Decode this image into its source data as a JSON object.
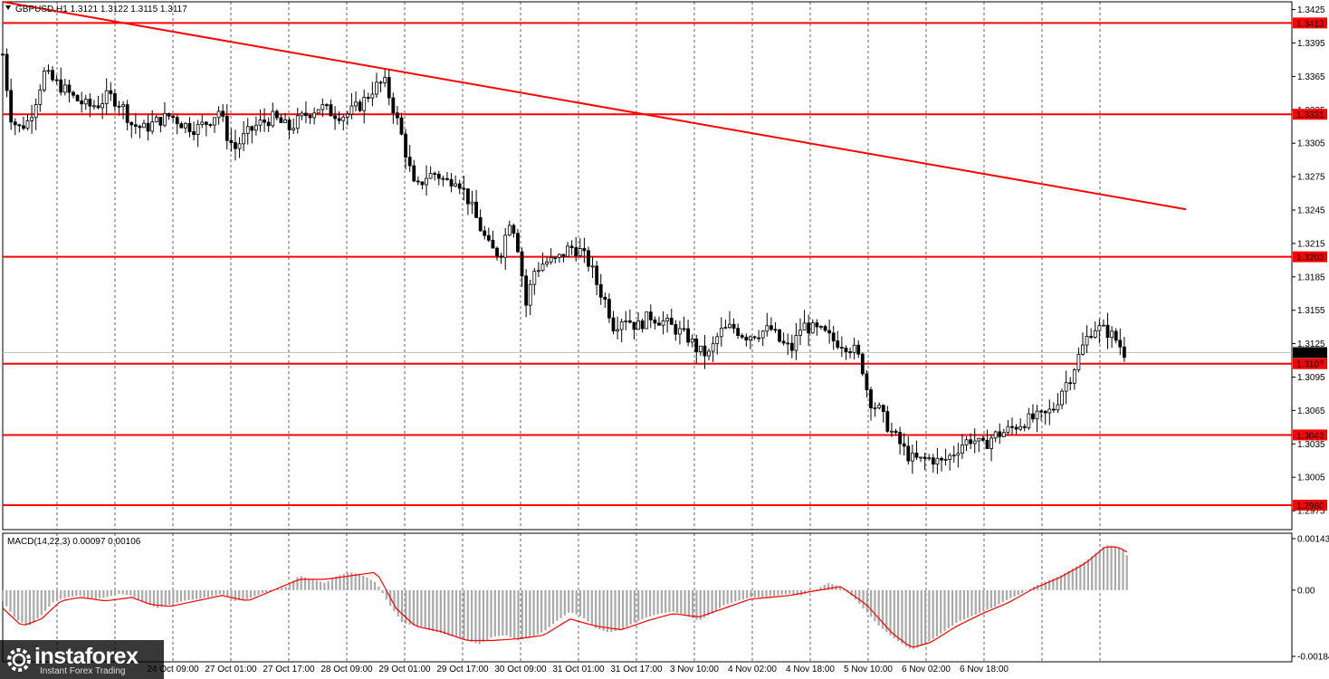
{
  "chart_data": [
    {
      "type": "candlestick",
      "symbol": "GBPUSD",
      "timeframe": "H1",
      "header_label": "GBPUSD,H1",
      "ohlc_label": "1.3121 1.3122 1.3115 1.3117",
      "current_price": "1.3117",
      "ylim": [
        1.2958,
        1.3432
      ],
      "y_ticks": [
        "1.3425",
        "1.3395",
        "1.3365",
        "1.3335",
        "1.3305",
        "1.3275",
        "1.3245",
        "1.3215",
        "1.3185",
        "1.3155",
        "1.3125",
        "1.3095",
        "1.3065",
        "1.3035",
        "1.3005",
        "1.2975"
      ],
      "x_ticks": [
        "24 Oct 09:00",
        "27 Oct 01:00",
        "27 Oct 17:00",
        "28 Oct 09:00",
        "29 Oct 01:00",
        "29 Oct 17:00",
        "30 Oct 09:00",
        "31 Oct 01:00",
        "31 Oct 17:00",
        "3 Nov 10:00",
        "4 Nov 02:00",
        "4 Nov 18:00",
        "5 Nov 10:00",
        "6 Nov 02:00",
        "6 Nov 18:00"
      ],
      "levels": [
        {
          "label": "1.3413",
          "value": 1.3413
        },
        {
          "label": "1.3331",
          "value": 1.3331
        },
        {
          "label": "1.3203",
          "value": 1.3203
        },
        {
          "label": "1.3107",
          "value": 1.3107
        },
        {
          "label": "1.3043",
          "value": 1.3043
        },
        {
          "label": "1.2980",
          "value": 1.298
        }
      ],
      "trendline": {
        "start": [
          0,
          1.3432
        ],
        "end": [
          1.0,
          1.3229
        ]
      },
      "price_path": [
        [
          0.0,
          1.3385
        ],
        [
          0.006,
          1.333
        ],
        [
          0.012,
          1.3318
        ],
        [
          0.02,
          1.3325
        ],
        [
          0.026,
          1.3345
        ],
        [
          0.032,
          1.3368
        ],
        [
          0.038,
          1.3362
        ],
        [
          0.046,
          1.3355
        ],
        [
          0.056,
          1.3345
        ],
        [
          0.066,
          1.3338
        ],
        [
          0.074,
          1.334
        ],
        [
          0.082,
          1.3348
        ],
        [
          0.092,
          1.334
        ],
        [
          0.1,
          1.3322
        ],
        [
          0.11,
          1.3318
        ],
        [
          0.12,
          1.3325
        ],
        [
          0.13,
          1.333
        ],
        [
          0.14,
          1.3322
        ],
        [
          0.15,
          1.3318
        ],
        [
          0.16,
          1.3325
        ],
        [
          0.168,
          1.3335
        ],
        [
          0.174,
          1.3312
        ],
        [
          0.18,
          1.33
        ],
        [
          0.188,
          1.3312
        ],
        [
          0.198,
          1.3322
        ],
        [
          0.21,
          1.3328
        ],
        [
          0.222,
          1.3318
        ],
        [
          0.234,
          1.333
        ],
        [
          0.246,
          1.3338
        ],
        [
          0.256,
          1.3332
        ],
        [
          0.266,
          1.333
        ],
        [
          0.278,
          1.334
        ],
        [
          0.288,
          1.3355
        ],
        [
          0.296,
          1.336
        ],
        [
          0.302,
          1.334
        ],
        [
          0.308,
          1.3318
        ],
        [
          0.314,
          1.329
        ],
        [
          0.32,
          1.3262
        ],
        [
          0.328,
          1.3275
        ],
        [
          0.336,
          1.3278
        ],
        [
          0.344,
          1.327
        ],
        [
          0.352,
          1.3275
        ],
        [
          0.362,
          1.3252
        ],
        [
          0.37,
          1.323
        ],
        [
          0.378,
          1.321
        ],
        [
          0.386,
          1.3205
        ],
        [
          0.394,
          1.324
        ],
        [
          0.4,
          1.321
        ],
        [
          0.406,
          1.316
        ],
        [
          0.412,
          1.319
        ],
        [
          0.42,
          1.3198
        ],
        [
          0.43,
          1.32
        ],
        [
          0.44,
          1.3212
        ],
        [
          0.448,
          1.3208
        ],
        [
          0.456,
          1.3195
        ],
        [
          0.462,
          1.3175
        ],
        [
          0.468,
          1.3162
        ],
        [
          0.474,
          1.314
        ],
        [
          0.482,
          1.315
        ],
        [
          0.492,
          1.314
        ],
        [
          0.502,
          1.315
        ],
        [
          0.512,
          1.3145
        ],
        [
          0.522,
          1.3138
        ],
        [
          0.532,
          1.313
        ],
        [
          0.54,
          1.3118
        ],
        [
          0.548,
          1.3115
        ],
        [
          0.556,
          1.3135
        ],
        [
          0.566,
          1.314
        ],
        [
          0.576,
          1.3132
        ],
        [
          0.586,
          1.3135
        ],
        [
          0.596,
          1.3138
        ],
        [
          0.604,
          1.3125
        ],
        [
          0.612,
          1.312
        ],
        [
          0.62,
          1.3142
        ],
        [
          0.628,
          1.3138
        ],
        [
          0.636,
          1.3135
        ],
        [
          0.644,
          1.3128
        ],
        [
          0.652,
          1.3125
        ],
        [
          0.66,
          1.312
        ],
        [
          0.666,
          1.3108
        ],
        [
          0.672,
          1.3075
        ],
        [
          0.68,
          1.3065
        ],
        [
          0.688,
          1.3048
        ],
        [
          0.696,
          1.3035
        ],
        [
          0.704,
          1.3022
        ],
        [
          0.712,
          1.302
        ],
        [
          0.72,
          1.3022
        ],
        [
          0.728,
          1.3018
        ],
        [
          0.736,
          1.3025
        ],
        [
          0.744,
          1.3035
        ],
        [
          0.752,
          1.304
        ],
        [
          0.76,
          1.3032
        ],
        [
          0.768,
          1.3042
        ],
        [
          0.776,
          1.3045
        ],
        [
          0.784,
          1.305
        ],
        [
          0.792,
          1.3055
        ],
        [
          0.8,
          1.3058
        ],
        [
          0.808,
          1.306
        ],
        [
          0.816,
          1.3068
        ],
        [
          0.822,
          1.3085
        ],
        [
          0.828,
          1.3095
        ],
        [
          0.834,
          1.3112
        ],
        [
          0.84,
          1.3128
        ],
        [
          0.846,
          1.314
        ],
        [
          0.852,
          1.3138
        ],
        [
          0.858,
          1.3135
        ],
        [
          0.864,
          1.3128
        ],
        [
          0.87,
          1.3117
        ]
      ]
    },
    {
      "type": "bar",
      "indicator": "MACD",
      "header_label": "MACD(14,22,3) 0.00097 0.00106",
      "ylim": [
        -0.00184,
        0.00143
      ],
      "y_ticks": [
        "0.00143",
        "0.00",
        "-0.00184"
      ],
      "histogram_path": [
        [
          0.0,
          -0.0003
        ],
        [
          0.01,
          -0.0008
        ],
        [
          0.02,
          -0.001
        ],
        [
          0.03,
          -0.0007
        ],
        [
          0.04,
          -0.0003
        ],
        [
          0.05,
          -0.0002
        ],
        [
          0.06,
          -0.00015
        ],
        [
          0.07,
          -0.00025
        ],
        [
          0.08,
          -0.0002
        ],
        [
          0.09,
          -0.0001
        ],
        [
          0.1,
          -0.00015
        ],
        [
          0.11,
          -0.00035
        ],
        [
          0.12,
          -0.0005
        ],
        [
          0.13,
          -0.0004
        ],
        [
          0.14,
          -0.0003
        ],
        [
          0.15,
          -0.00025
        ],
        [
          0.16,
          -0.0002
        ],
        [
          0.17,
          -0.0001
        ],
        [
          0.18,
          -0.0003
        ],
        [
          0.19,
          -0.00025
        ],
        [
          0.2,
          -0.0001
        ],
        [
          0.21,
          0.0
        ],
        [
          0.22,
          0.0001
        ],
        [
          0.23,
          0.0004
        ],
        [
          0.24,
          0.0003
        ],
        [
          0.25,
          0.0002
        ],
        [
          0.26,
          0.0004
        ],
        [
          0.27,
          0.0005
        ],
        [
          0.28,
          0.0004
        ],
        [
          0.29,
          0.0002
        ],
        [
          0.3,
          -0.0004
        ],
        [
          0.31,
          -0.0009
        ],
        [
          0.32,
          -0.001
        ],
        [
          0.33,
          -0.0011
        ],
        [
          0.34,
          -0.0012
        ],
        [
          0.35,
          -0.0013
        ],
        [
          0.36,
          -0.0014
        ],
        [
          0.37,
          -0.0015
        ],
        [
          0.38,
          -0.0013
        ],
        [
          0.39,
          -0.00125
        ],
        [
          0.4,
          -0.0014
        ],
        [
          0.41,
          -0.0013
        ],
        [
          0.42,
          -0.00115
        ],
        [
          0.43,
          -0.00085
        ],
        [
          0.44,
          -0.0006
        ],
        [
          0.45,
          -0.00075
        ],
        [
          0.46,
          -0.00105
        ],
        [
          0.47,
          -0.00118
        ],
        [
          0.48,
          -0.0011
        ],
        [
          0.49,
          -0.0009
        ],
        [
          0.5,
          -0.00075
        ],
        [
          0.51,
          -0.00065
        ],
        [
          0.52,
          -0.0006
        ],
        [
          0.53,
          -0.0007
        ],
        [
          0.54,
          -0.00085
        ],
        [
          0.55,
          -0.00065
        ],
        [
          0.56,
          -0.0004
        ],
        [
          0.57,
          -0.0003
        ],
        [
          0.58,
          -0.0002
        ],
        [
          0.59,
          -0.0002
        ],
        [
          0.6,
          -0.00015
        ],
        [
          0.61,
          -0.0001
        ],
        [
          0.62,
          -0.00015
        ],
        [
          0.63,
          0.0
        ],
        [
          0.64,
          0.0002
        ],
        [
          0.65,
          0.0001
        ],
        [
          0.66,
          -0.0002
        ],
        [
          0.67,
          -0.0006
        ],
        [
          0.68,
          -0.001
        ],
        [
          0.69,
          -0.0013
        ],
        [
          0.7,
          -0.00155
        ],
        [
          0.705,
          -0.00165
        ],
        [
          0.71,
          -0.0016
        ],
        [
          0.72,
          -0.0014
        ],
        [
          0.73,
          -0.00115
        ],
        [
          0.74,
          -0.0009
        ],
        [
          0.75,
          -0.00075
        ],
        [
          0.76,
          -0.0006
        ],
        [
          0.77,
          -0.00045
        ],
        [
          0.78,
          -0.00025
        ],
        [
          0.79,
          -0.0001
        ],
        [
          0.8,
          0.0001
        ],
        [
          0.81,
          0.00025
        ],
        [
          0.82,
          0.0004
        ],
        [
          0.83,
          0.0006
        ],
        [
          0.84,
          0.0008
        ],
        [
          0.85,
          0.0011
        ],
        [
          0.856,
          0.00125
        ],
        [
          0.862,
          0.00123
        ],
        [
          0.868,
          0.00115
        ],
        [
          0.872,
          0.00097
        ]
      ],
      "signal_path": [
        [
          0.0,
          -0.0005
        ],
        [
          0.015,
          -0.001
        ],
        [
          0.03,
          -0.0008
        ],
        [
          0.045,
          -0.0003
        ],
        [
          0.06,
          -0.0002
        ],
        [
          0.08,
          -0.0003
        ],
        [
          0.1,
          -0.0002
        ],
        [
          0.115,
          -0.0004
        ],
        [
          0.13,
          -0.00045
        ],
        [
          0.15,
          -0.0003
        ],
        [
          0.17,
          -0.00015
        ],
        [
          0.19,
          -0.0003
        ],
        [
          0.21,
          0.0
        ],
        [
          0.23,
          0.0003
        ],
        [
          0.25,
          0.0003
        ],
        [
          0.27,
          0.0004
        ],
        [
          0.29,
          0.0005
        ],
        [
          0.305,
          -0.0005
        ],
        [
          0.32,
          -0.001
        ],
        [
          0.34,
          -0.00115
        ],
        [
          0.36,
          -0.0014
        ],
        [
          0.38,
          -0.0014
        ],
        [
          0.4,
          -0.00135
        ],
        [
          0.42,
          -0.00125
        ],
        [
          0.44,
          -0.0008
        ],
        [
          0.46,
          -0.001
        ],
        [
          0.48,
          -0.0011
        ],
        [
          0.5,
          -0.00085
        ],
        [
          0.52,
          -0.00065
        ],
        [
          0.54,
          -0.00075
        ],
        [
          0.56,
          -0.0005
        ],
        [
          0.58,
          -0.00025
        ],
        [
          0.61,
          -0.00015
        ],
        [
          0.63,
          -2e-05
        ],
        [
          0.65,
          0.0001
        ],
        [
          0.67,
          -0.0004
        ],
        [
          0.69,
          -0.0012
        ],
        [
          0.705,
          -0.0016
        ],
        [
          0.72,
          -0.00145
        ],
        [
          0.74,
          -0.001
        ],
        [
          0.76,
          -0.00065
        ],
        [
          0.78,
          -0.00035
        ],
        [
          0.8,
          5e-05
        ],
        [
          0.82,
          0.00035
        ],
        [
          0.84,
          0.00075
        ],
        [
          0.855,
          0.0012
        ],
        [
          0.865,
          0.0012
        ],
        [
          0.872,
          0.00106
        ]
      ]
    }
  ],
  "watermark": {
    "brand": "instaforex",
    "tagline": "Instant Forex Trading"
  }
}
